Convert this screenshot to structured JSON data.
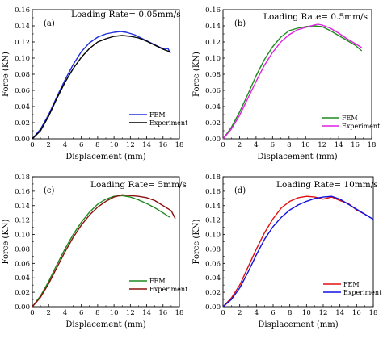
{
  "figure": {
    "panels": [
      {
        "panel_label": "(a)",
        "loading_rate": "Loading Rate= 0.05mm/s",
        "xlabel": "Displacement (mm)",
        "ylabel": "Force (KN)",
        "xlim": [
          0,
          18
        ],
        "ylim": [
          0,
          0.16
        ],
        "xticks": [
          "0",
          "2",
          "4",
          "6",
          "8",
          "10",
          "12",
          "14",
          "16",
          "18"
        ],
        "yticks": [
          "0.00",
          "0.02",
          "0.04",
          "0.06",
          "0.08",
          "0.10",
          "0.12",
          "0.14",
          "0.16"
        ],
        "legend_position": "bottom-right",
        "series": [
          {
            "name": "FEM",
            "color": "#1f2fe0",
            "x": [
              0,
              1,
              2,
              3,
              4,
              5,
              6,
              7,
              8,
              9,
              10,
              10.8,
              11.5,
              12.5,
              13.5,
              14.5,
              15.5,
              16.2,
              16.6,
              16.9
            ],
            "y": [
              0,
              0.012,
              0.03,
              0.052,
              0.073,
              0.092,
              0.108,
              0.119,
              0.126,
              0.13,
              0.132,
              0.133,
              0.132,
              0.129,
              0.124,
              0.119,
              0.114,
              0.111,
              0.112,
              0.106
            ]
          },
          {
            "name": "Experiment",
            "color": "#000000",
            "x": [
              0,
              1,
              2,
              3,
              4,
              5,
              6,
              7,
              8,
              9,
              10,
              11,
              12,
              13,
              14,
              15,
              16,
              16.8
            ],
            "y": [
              0,
              0.01,
              0.028,
              0.05,
              0.07,
              0.087,
              0.101,
              0.112,
              0.12,
              0.124,
              0.127,
              0.128,
              0.127,
              0.125,
              0.121,
              0.116,
              0.111,
              0.108
            ]
          }
        ]
      },
      {
        "panel_label": "(b)",
        "loading_rate": "Loading Rate= 0.5mm/s",
        "xlabel": "Displacement (mm)",
        "ylabel": "Force (KN)",
        "xlim": [
          0,
          18
        ],
        "ylim": [
          0,
          0.16
        ],
        "xticks": [
          "0",
          "2",
          "4",
          "6",
          "8",
          "10",
          "12",
          "14",
          "16",
          "18"
        ],
        "yticks": [
          "0.00",
          "0.02",
          "0.04",
          "0.06",
          "0.08",
          "0.10",
          "0.12",
          "0.14",
          "0.16"
        ],
        "legend_position": "bottom-right",
        "series": [
          {
            "name": "FEM",
            "color": "#1e8a1e",
            "x": [
              0,
              1,
              2,
              3,
              4,
              5,
              6,
              7,
              8,
              9,
              10,
              11,
              12,
              13,
              14,
              15,
              16,
              16.8
            ],
            "y": [
              0,
              0.014,
              0.033,
              0.055,
              0.078,
              0.098,
              0.114,
              0.126,
              0.134,
              0.137,
              0.139,
              0.14,
              0.139,
              0.134,
              0.128,
              0.122,
              0.116,
              0.109
            ]
          },
          {
            "name": "Experiment",
            "color": "#e020e0",
            "x": [
              0,
              1,
              2,
              3,
              4,
              5,
              6,
              7,
              8,
              9,
              10,
              11,
              11.5,
              12,
              13,
              14,
              15,
              16,
              16.8
            ],
            "y": [
              0,
              0.012,
              0.029,
              0.05,
              0.071,
              0.091,
              0.107,
              0.12,
              0.129,
              0.135,
              0.138,
              0.141,
              0.142,
              0.141,
              0.137,
              0.131,
              0.124,
              0.118,
              0.113
            ]
          }
        ]
      },
      {
        "panel_label": "(c)",
        "loading_rate": "Loading Rate= 5mm/s",
        "xlabel": "Displacement (mm)",
        "ylabel": "Force (KN)",
        "xlim": [
          0,
          18
        ],
        "ylim": [
          0,
          0.18
        ],
        "xticks": [
          "0",
          "2",
          "4",
          "6",
          "8",
          "10",
          "12",
          "14",
          "16",
          "18"
        ],
        "yticks": [
          "0.00",
          "0.02",
          "0.04",
          "0.06",
          "0.08",
          "0.10",
          "0.12",
          "0.14",
          "0.16",
          "0.18"
        ],
        "legend_position": "bottom-right",
        "series": [
          {
            "name": "FEM",
            "color": "#1e8a1e",
            "x": [
              0,
              1,
              2,
              3,
              4,
              5,
              6,
              7,
              8,
              9,
              10,
              11,
              12,
              13,
              14,
              15,
              16,
              16.8
            ],
            "y": [
              0,
              0.015,
              0.035,
              0.058,
              0.08,
              0.1,
              0.117,
              0.131,
              0.142,
              0.149,
              0.153,
              0.154,
              0.152,
              0.148,
              0.143,
              0.137,
              0.13,
              0.124
            ]
          },
          {
            "name": "Experiment",
            "color": "#8b1010",
            "x": [
              0,
              1,
              2,
              3,
              4,
              5,
              6,
              7,
              8,
              9,
              10,
              11,
              12,
              13,
              14,
              15,
              16,
              17,
              17.5
            ],
            "y": [
              0,
              0.013,
              0.032,
              0.054,
              0.076,
              0.096,
              0.113,
              0.127,
              0.138,
              0.146,
              0.152,
              0.155,
              0.154,
              0.153,
              0.151,
              0.147,
              0.14,
              0.133,
              0.122
            ]
          }
        ]
      },
      {
        "panel_label": "(d)",
        "loading_rate": "Loading Rate= 10mm/s",
        "xlabel": "Displacement (mm)",
        "ylabel": "Force (KN)",
        "xlim": [
          0,
          18
        ],
        "ylim": [
          0,
          0.18
        ],
        "xticks": [
          "0",
          "2",
          "4",
          "6",
          "8",
          "10",
          "12",
          "14",
          "16",
          "18"
        ],
        "yticks": [
          "0.00",
          "0.02",
          "0.04",
          "0.06",
          "0.08",
          "0.10",
          "0.12",
          "0.14",
          "0.16",
          "0.18"
        ],
        "legend_position": "bottom-right",
        "series": [
          {
            "name": "FEM",
            "color": "#e01010",
            "x": [
              0,
              1,
              2,
              3,
              4,
              5,
              6,
              7,
              8,
              9,
              10,
              11,
              12,
              13,
              14,
              15,
              16,
              17,
              17.5
            ],
            "y": [
              0,
              0.012,
              0.03,
              0.055,
              0.08,
              0.103,
              0.122,
              0.137,
              0.146,
              0.151,
              0.153,
              0.152,
              0.149,
              0.152,
              0.147,
              0.143,
              0.134,
              0.128,
              0.125
            ]
          },
          {
            "name": "Experiment",
            "color": "#1010e0",
            "x": [
              0,
              1,
              2,
              3,
              4,
              5,
              6,
              7,
              8,
              9,
              10,
              11,
              12,
              13,
              14,
              15,
              16,
              17,
              18
            ],
            "y": [
              0,
              0.01,
              0.026,
              0.048,
              0.072,
              0.094,
              0.111,
              0.124,
              0.134,
              0.141,
              0.146,
              0.15,
              0.152,
              0.153,
              0.149,
              0.142,
              0.135,
              0.128,
              0.121
            ]
          }
        ]
      }
    ]
  }
}
